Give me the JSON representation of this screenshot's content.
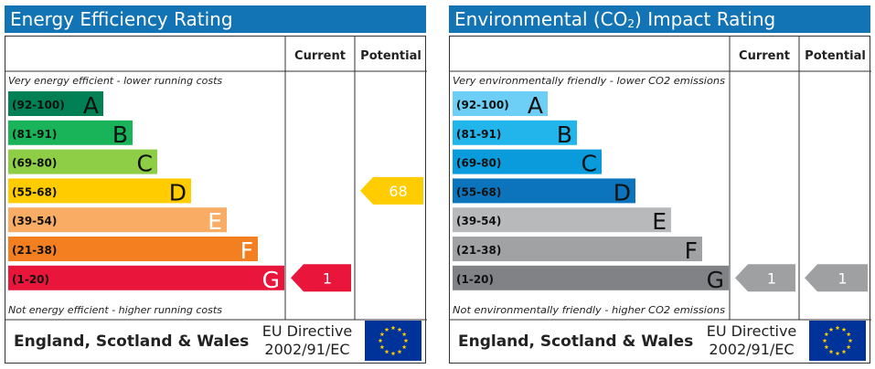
{
  "chart_data": [
    {
      "type": "bar",
      "title": "Energy Efficiency Rating",
      "header": {
        "current": "Current",
        "potential": "Potential"
      },
      "top_note": "Very energy efficient - lower running costs",
      "bottom_note": "Not energy efficient - higher running costs",
      "bands": [
        {
          "range": "(92-100)",
          "letter": "A",
          "color": "#008054"
        },
        {
          "range": "(81-91)",
          "letter": "B",
          "color": "#19b459"
        },
        {
          "range": "(69-80)",
          "letter": "C",
          "color": "#8dce46"
        },
        {
          "range": "(55-68)",
          "letter": "D",
          "color": "#ffcc00"
        },
        {
          "range": "(39-54)",
          "letter": "E",
          "color": "#f9ac64"
        },
        {
          "range": "(21-38)",
          "letter": "F",
          "color": "#f47f20"
        },
        {
          "range": "(1-20)",
          "letter": "G",
          "color": "#e9153b"
        }
      ],
      "current": {
        "value": 1,
        "band": "G",
        "color": "#e9153b"
      },
      "potential": {
        "value": 68,
        "band": "D",
        "color": "#ffcc00"
      },
      "footer": {
        "country": "England, Scotland & Wales",
        "directive_line1": "EU Directive",
        "directive_line2": "2002/91/EC"
      }
    },
    {
      "type": "bar",
      "title_pre": "Environmental (CO",
      "title_sub": "2",
      "title_post": ") Impact Rating",
      "header": {
        "current": "Current",
        "potential": "Potential"
      },
      "top_note": "Very environmentally friendly - lower CO2 emissions",
      "bottom_note": "Not environmentally friendly - higher CO2 emissions",
      "bands": [
        {
          "range": "(92-100)",
          "letter": "A",
          "color": "#6ecff6"
        },
        {
          "range": "(81-91)",
          "letter": "B",
          "color": "#22b5eb"
        },
        {
          "range": "(69-80)",
          "letter": "C",
          "color": "#0a9bdc"
        },
        {
          "range": "(55-68)",
          "letter": "D",
          "color": "#0b74bc"
        },
        {
          "range": "(39-54)",
          "letter": "E",
          "color": "#b8b9bb"
        },
        {
          "range": "(21-38)",
          "letter": "F",
          "color": "#a1a2a4"
        },
        {
          "range": "(1-20)",
          "letter": "G",
          "color": "#808285"
        }
      ],
      "current": {
        "value": 1,
        "band": "G",
        "color": "#9fa0a2"
      },
      "potential": {
        "value": 1,
        "band": "G",
        "color": "#9fa0a2"
      },
      "footer": {
        "country": "England, Scotland & Wales",
        "directive_line1": "EU Directive",
        "directive_line2": "2002/91/EC"
      }
    }
  ]
}
